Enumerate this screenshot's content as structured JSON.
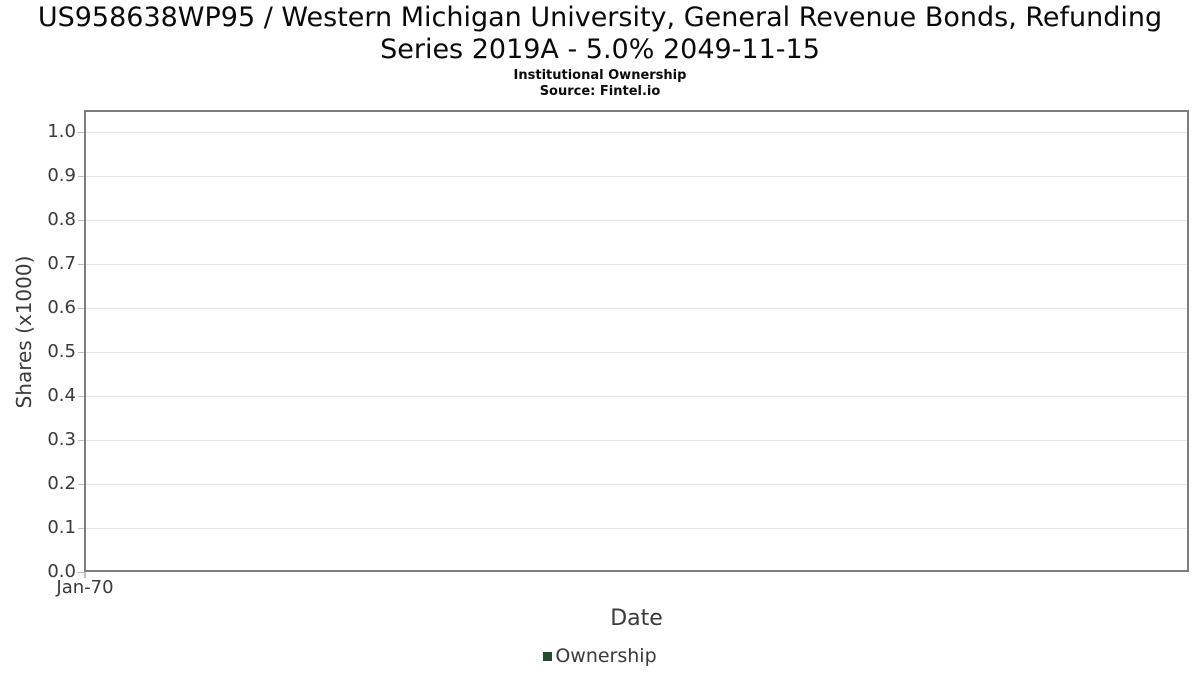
{
  "chart_data": {
    "type": "line",
    "title": "US958638WP95 / Western Michigan University, General Revenue Bonds, Refunding Series 2019A - 5.0% 2049-11-15",
    "title_lines": [
      "US958638WP95 / Western Michigan University, General Revenue Bonds, Refunding",
      "Series 2019A - 5.0% 2049-11-15"
    ],
    "subtitle": "Institutional Ownership",
    "source": "Source: Fintel.io",
    "xlabel": "Date",
    "ylabel": "Shares (x1000)",
    "x_tick_labels": [
      "Jan-70"
    ],
    "y_tick_labels": [
      "1.0",
      "0.9",
      "0.8",
      "0.7",
      "0.6",
      "0.5",
      "0.4",
      "0.3",
      "0.2",
      "0.1",
      "0.0"
    ],
    "ylim": [
      0.0,
      1.05
    ],
    "grid": "horizontal-only",
    "legend": {
      "position": "bottom-center",
      "entries": [
        {
          "label": "Ownership",
          "color": "#1d4d2b"
        }
      ]
    },
    "series": [
      {
        "name": "Ownership",
        "color": "#1d4d2b",
        "x": [],
        "values": []
      }
    ],
    "colors": {
      "axis_border": "#7d7d7d",
      "gridline": "#e6e6e6",
      "tick_mark": "#c2c2c2",
      "label_text": "#3a3a3a",
      "title_text": "#0a0a0a",
      "background": "#ffffff"
    }
  }
}
